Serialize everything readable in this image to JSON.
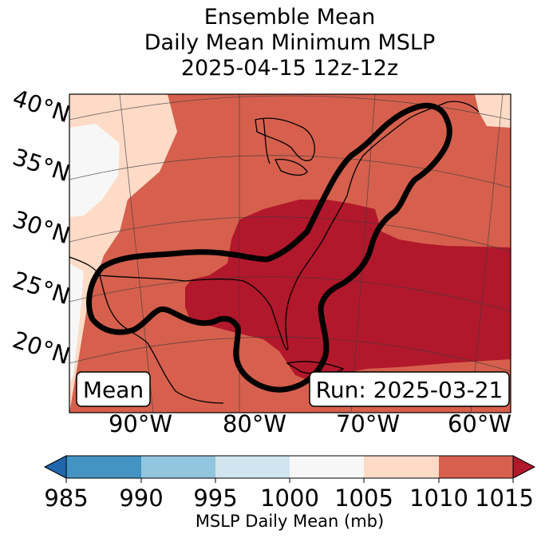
{
  "title": {
    "line1": "Ensemble Mean",
    "line2": "Daily Mean Minimum MSLP",
    "line3": "2025-04-15 12z-12z"
  },
  "map": {
    "lat_labels": [
      "40°N",
      "35°N",
      "30°N",
      "25°N",
      "20°N"
    ],
    "lon_labels": [
      "90°W",
      "80°W",
      "70°W",
      "60°W"
    ],
    "stat_label": "Mean",
    "run_label": "Run: 2025-03-21",
    "fill_colors": {
      "lt_1005": "#f7f7f7",
      "1005_1010": "#fddbc7",
      "1010_1015": "#d6604d",
      "gt_1015": "#b2182b"
    },
    "contour_color": "#000000"
  },
  "colorbar": {
    "ticks": [
      "985",
      "990",
      "995",
      "1000",
      "1005",
      "1010",
      "1015"
    ],
    "colors": [
      "#4393c3",
      "#92c5de",
      "#d1e5f0",
      "#f7f7f7",
      "#fddbc7",
      "#d6604d"
    ],
    "under_color": "#2166ac",
    "over_color": "#b2182b",
    "label": "MSLP Daily Mean (mb)"
  }
}
